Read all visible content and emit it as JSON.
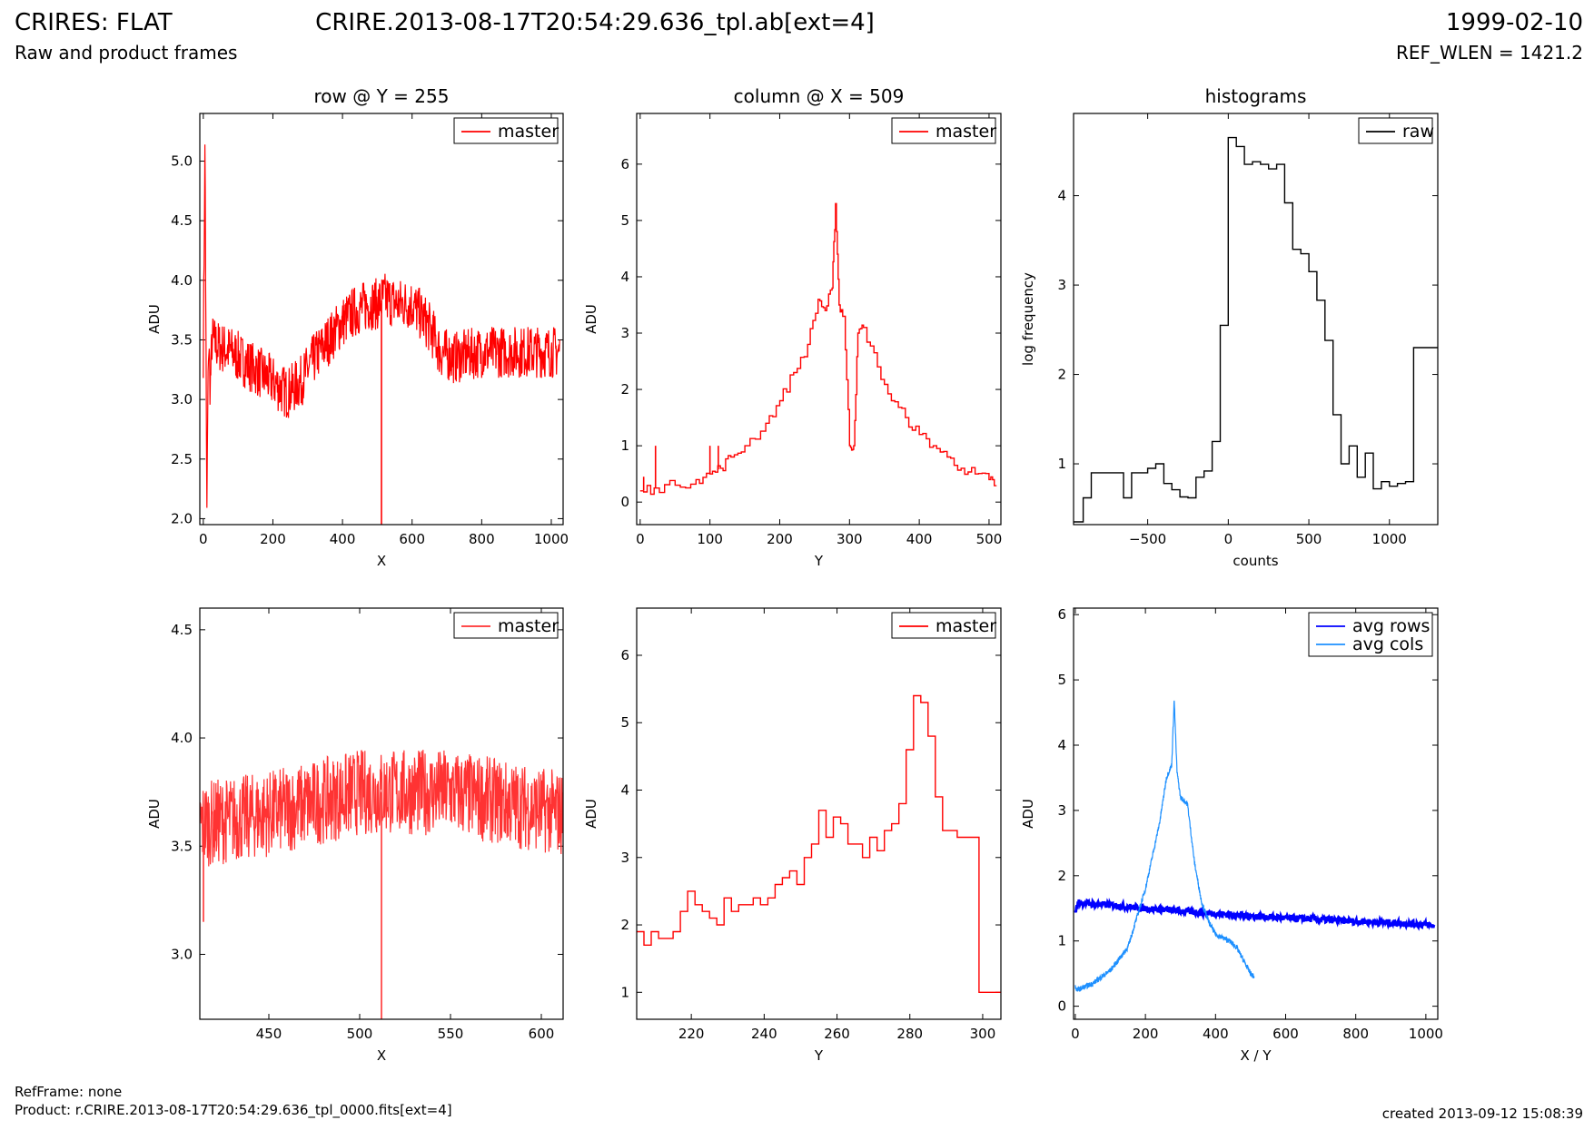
{
  "header": {
    "title": "CRIRES: FLAT",
    "subtitle": "Raw and product frames",
    "file": "CRIRE.2013-08-17T20:54:29.636_tpl.ab[ext=4]",
    "date": "1999-02-10",
    "ref_wlen": "REF_WLEN = 1421.2"
  },
  "footer": {
    "ref_frame": "RefFrame: none",
    "product": "Product: r.CRIRE.2013-08-17T20:54:29.636_tpl_0000.fits[ext=4]",
    "created": "created 2013-09-12 15:08:39"
  },
  "colors": {
    "master": "#ff0000",
    "master_zoom": "#ff3333",
    "raw": "#000000",
    "avg_rows": "#0000ff",
    "avg_cols": "#1e90ff"
  },
  "chart_data": [
    {
      "type": "line",
      "title": "row @ Y = 255",
      "xlabel": "X",
      "ylabel": "ADU",
      "xlim": [
        -10,
        1034
      ],
      "ylim": [
        1.95,
        5.4
      ],
      "xticks": [
        0,
        200,
        400,
        600,
        800,
        1000
      ],
      "yticks": [
        2.0,
        2.5,
        3.0,
        3.5,
        4.0,
        4.5,
        5.0
      ],
      "legend": "upper right",
      "series": [
        {
          "name": "master",
          "color": "#ff0000",
          "style": "noisy",
          "x": [
            0,
            5,
            10,
            15,
            20,
            25,
            40,
            80,
            150,
            200,
            240,
            280,
            320,
            360,
            400,
            440,
            480,
            500,
            520,
            560,
            600,
            640,
            660,
            680,
            720,
            800,
            900,
            1000,
            1024
          ],
          "y": [
            3.4,
            5.2,
            2.0,
            3.5,
            3.1,
            3.5,
            3.45,
            3.4,
            3.25,
            3.15,
            3.05,
            3.15,
            3.35,
            3.5,
            3.65,
            3.75,
            3.8,
            3.8,
            3.85,
            3.8,
            3.8,
            3.65,
            3.55,
            3.4,
            3.35,
            3.4,
            3.4,
            3.4,
            3.4
          ],
          "amplitude": 0.22,
          "spikes": [
            {
              "x": 512,
              "y": 1.95
            }
          ]
        }
      ]
    },
    {
      "type": "line",
      "title": "column @ X = 509",
      "xlabel": "Y",
      "ylabel": "ADU",
      "xlim": [
        -5,
        517
      ],
      "ylim": [
        -0.4,
        6.9
      ],
      "xticks": [
        0,
        100,
        200,
        300,
        400,
        500
      ],
      "yticks": [
        0,
        1,
        2,
        3,
        4,
        5,
        6
      ],
      "legend": "upper right",
      "series": [
        {
          "name": "master",
          "color": "#ff0000",
          "style": "steps",
          "x": [
            0,
            20,
            50,
            80,
            100,
            115,
            130,
            150,
            180,
            200,
            220,
            240,
            255,
            265,
            275,
            280,
            285,
            292,
            300,
            306,
            312,
            320,
            340,
            360,
            380,
            400,
            420,
            440,
            460,
            480,
            500,
            510
          ],
          "y": [
            0.2,
            0.25,
            0.3,
            0.4,
            0.5,
            0.6,
            0.8,
            1.0,
            1.4,
            1.8,
            2.3,
            2.8,
            3.6,
            3.4,
            3.8,
            5.3,
            3.5,
            3.3,
            1.0,
            1.0,
            3.0,
            3.1,
            2.4,
            1.8,
            1.5,
            1.2,
            1.0,
            0.8,
            0.6,
            0.5,
            0.4,
            0.3
          ],
          "amplitude": 0.1,
          "spikes": [
            {
              "x": 5,
              "y": 0.45
            },
            {
              "x": 22,
              "y": 1.0
            },
            {
              "x": 100,
              "y": 1.0
            },
            {
              "x": 112,
              "y": 1.0
            }
          ]
        }
      ]
    },
    {
      "type": "line",
      "title": "histograms",
      "xlabel": "counts",
      "ylabel": "log frequency",
      "xlim": [
        -960,
        1300
      ],
      "ylim": [
        0.32,
        4.92
      ],
      "xticks": [
        -500,
        0,
        500,
        1000
      ],
      "yticks": [
        1,
        2,
        3,
        4
      ],
      "legend": "upper right",
      "series": [
        {
          "name": "raw",
          "color": "#000000",
          "style": "steps",
          "x": [
            -960,
            -900,
            -850,
            -800,
            -750,
            -700,
            -650,
            -600,
            -550,
            -500,
            -450,
            -400,
            -350,
            -300,
            -250,
            -200,
            -150,
            -100,
            -50,
            0,
            50,
            100,
            150,
            200,
            250,
            300,
            350,
            400,
            450,
            500,
            550,
            600,
            650,
            700,
            750,
            800,
            850,
            900,
            950,
            1000,
            1050,
            1100,
            1150,
            1200,
            1250,
            1300
          ],
          "y": [
            0.35,
            0.62,
            0.9,
            0.9,
            0.9,
            0.9,
            0.62,
            0.9,
            0.9,
            0.95,
            1.0,
            0.78,
            0.71,
            0.63,
            0.62,
            0.85,
            0.92,
            1.25,
            2.55,
            4.65,
            4.55,
            4.35,
            4.38,
            4.35,
            4.3,
            4.35,
            3.92,
            3.4,
            3.35,
            3.15,
            2.83,
            2.38,
            1.55,
            1.0,
            1.2,
            0.85,
            1.12,
            0.72,
            0.8,
            0.75,
            0.78,
            0.8,
            2.3,
            2.3,
            2.3,
            2.3
          ]
        }
      ]
    },
    {
      "type": "line",
      "xlabel": "X",
      "ylabel": "ADU",
      "xlim": [
        412,
        612
      ],
      "ylim": [
        2.7,
        4.6
      ],
      "xticks": [
        450,
        500,
        550,
        600
      ],
      "yticks": [
        3.0,
        3.5,
        4.0,
        4.5
      ],
      "legend": "upper right",
      "series": [
        {
          "name": "master",
          "color": "#ff3333",
          "style": "noisy",
          "x": [
            412,
            450,
            500,
            550,
            580,
            612
          ],
          "y": [
            3.6,
            3.65,
            3.75,
            3.75,
            3.7,
            3.65
          ],
          "amplitude": 0.2,
          "spikes": [
            {
              "x": 512,
              "y": 2.7
            },
            {
              "x": 414,
              "y": 3.15
            }
          ]
        }
      ]
    },
    {
      "type": "line",
      "xlabel": "Y",
      "ylabel": "ADU",
      "xlim": [
        205,
        305
      ],
      "ylim": [
        0.6,
        6.7
      ],
      "xticks": [
        220,
        240,
        260,
        280,
        300
      ],
      "yticks": [
        1,
        2,
        3,
        4,
        5,
        6
      ],
      "legend": "upper right",
      "series": [
        {
          "name": "master",
          "color": "#ff0000",
          "style": "steps",
          "x": [
            205,
            207,
            209,
            211,
            213,
            215,
            217,
            219,
            221,
            223,
            225,
            227,
            229,
            231,
            233,
            235,
            237,
            239,
            241,
            243,
            245,
            247,
            249,
            251,
            253,
            255,
            257,
            259,
            261,
            263,
            265,
            267,
            269,
            271,
            273,
            275,
            277,
            279,
            281,
            283,
            285,
            287,
            289,
            291,
            293,
            295,
            297,
            299,
            301,
            303,
            305
          ],
          "y": [
            1.9,
            1.7,
            1.9,
            1.8,
            1.8,
            1.9,
            2.2,
            2.5,
            2.3,
            2.2,
            2.1,
            2.0,
            2.4,
            2.2,
            2.3,
            2.3,
            2.4,
            2.3,
            2.4,
            2.6,
            2.7,
            2.8,
            2.6,
            3.0,
            3.2,
            3.7,
            3.3,
            3.6,
            3.5,
            3.2,
            3.2,
            3.0,
            3.3,
            3.1,
            3.4,
            3.5,
            3.8,
            4.6,
            5.4,
            5.3,
            4.8,
            3.9,
            3.4,
            3.4,
            3.3,
            3.3,
            3.3,
            1.0,
            1.0,
            1.0,
            1.0
          ]
        }
      ]
    },
    {
      "type": "line",
      "xlabel": "X / Y",
      "ylabel": "ADU",
      "xlim": [
        -5,
        1034
      ],
      "ylim": [
        -0.2,
        6.1
      ],
      "xticks": [
        0,
        200,
        400,
        600,
        800,
        1000
      ],
      "yticks": [
        0,
        1,
        2,
        3,
        4,
        5,
        6
      ],
      "legend": "upper right",
      "series": [
        {
          "name": "avg rows",
          "color": "#0000ff",
          "style": "band",
          "x": [
            0,
            10,
            20,
            100,
            200,
            300,
            400,
            500,
            600,
            700,
            800,
            900,
            1000,
            1024
          ],
          "y": [
            1.45,
            1.6,
            1.58,
            1.55,
            1.5,
            1.46,
            1.42,
            1.38,
            1.35,
            1.33,
            1.3,
            1.28,
            1.25,
            1.23
          ],
          "amplitude": 0.05
        },
        {
          "name": "avg cols",
          "color": "#1e90ff",
          "style": "noisy",
          "x": [
            0,
            5,
            20,
            50,
            100,
            150,
            200,
            240,
            260,
            275,
            282,
            290,
            300,
            320,
            340,
            360,
            380,
            400,
            420,
            440,
            460,
            480,
            500,
            510
          ],
          "y": [
            0.3,
            0.25,
            0.28,
            0.35,
            0.55,
            0.9,
            1.8,
            2.8,
            3.5,
            3.7,
            4.7,
            3.6,
            3.2,
            3.1,
            2.2,
            1.6,
            1.3,
            1.1,
            1.05,
            1.0,
            0.9,
            0.7,
            0.5,
            0.45
          ],
          "amplitude": 0.04
        }
      ]
    }
  ]
}
